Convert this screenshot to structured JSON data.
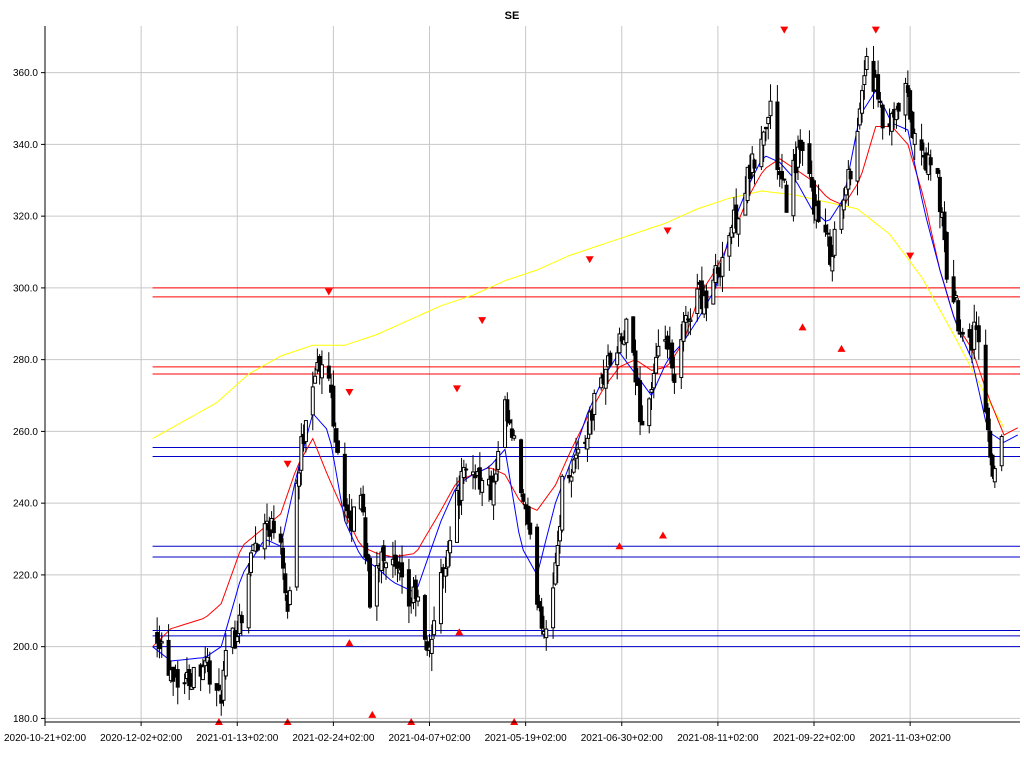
{
  "chart_data": {
    "type": "candlestick",
    "title": "SE",
    "xlabel": "",
    "ylabel": "",
    "ylim": [
      179,
      373
    ],
    "xlim": [
      "2020-10-21",
      "2021-12-21"
    ],
    "grid": true,
    "x_ticks": [
      "2020-10-21+02:00",
      "2020-12-02+02:00",
      "2021-01-13+02:00",
      "2021-02-24+02:00",
      "2021-04-07+02:00",
      "2021-05-19+02:00",
      "2021-06-30+02:00",
      "2021-08-11+02:00",
      "2021-09-22+02:00",
      "2021-11-03+02:00"
    ],
    "y_ticks": [
      "180.0",
      "200.0",
      "220.0",
      "240.0",
      "260.0",
      "280.0",
      "300.0",
      "320.0",
      "340.0",
      "360.0"
    ],
    "colors": {
      "candles": "#000000",
      "resistance_lines": "#ff0000",
      "support_lines": "#0000c8",
      "ma_red": "#ff0000",
      "ma_blue": "#0000ff",
      "ma_yellow": "#ffff00",
      "markers": "#ff0000"
    },
    "close_anchors": [
      [
        "2020-12-09",
        205
      ],
      [
        "2020-12-14",
        195
      ],
      [
        "2020-12-21",
        190
      ],
      [
        "2020-12-30",
        197
      ],
      [
        "2021-01-05",
        184
      ],
      [
        "2021-01-08",
        195
      ],
      [
        "2021-01-15",
        210
      ],
      [
        "2021-01-20",
        228
      ],
      [
        "2021-01-26",
        235
      ],
      [
        "2021-02-01",
        232
      ],
      [
        "2021-02-04",
        210
      ],
      [
        "2021-02-08",
        245
      ],
      [
        "2021-02-12",
        265
      ],
      [
        "2021-02-16",
        278
      ],
      [
        "2021-02-22",
        275
      ],
      [
        "2021-02-26",
        255
      ],
      [
        "2021-03-03",
        232
      ],
      [
        "2021-03-08",
        245
      ],
      [
        "2021-03-12",
        212
      ],
      [
        "2021-03-17",
        228
      ],
      [
        "2021-03-22",
        222
      ],
      [
        "2021-03-29",
        212
      ],
      [
        "2021-04-01",
        215
      ],
      [
        "2021-04-06",
        197
      ],
      [
        "2021-04-12",
        218
      ],
      [
        "2021-04-16",
        232
      ],
      [
        "2021-04-21",
        246
      ],
      [
        "2021-04-27",
        250
      ],
      [
        "2021-04-30",
        245
      ],
      [
        "2021-05-05",
        243
      ],
      [
        "2021-05-10",
        265
      ],
      [
        "2021-05-14",
        255
      ],
      [
        "2021-05-18",
        240
      ],
      [
        "2021-05-24",
        215
      ],
      [
        "2021-05-27",
        205
      ],
      [
        "2021-06-01",
        220
      ],
      [
        "2021-06-04",
        245
      ],
      [
        "2021-06-09",
        252
      ],
      [
        "2021-06-14",
        258
      ],
      [
        "2021-06-18",
        268
      ],
      [
        "2021-06-23",
        278
      ],
      [
        "2021-06-28",
        282
      ],
      [
        "2021-07-02",
        288
      ],
      [
        "2021-07-06",
        275
      ],
      [
        "2021-07-09",
        262
      ],
      [
        "2021-07-14",
        275
      ],
      [
        "2021-07-19",
        287
      ],
      [
        "2021-07-23",
        272
      ],
      [
        "2021-07-27",
        288
      ],
      [
        "2021-08-02",
        300
      ],
      [
        "2021-08-06",
        296
      ],
      [
        "2021-08-11",
        305
      ],
      [
        "2021-08-16",
        315
      ],
      [
        "2021-08-20",
        322
      ],
      [
        "2021-08-25",
        332
      ],
      [
        "2021-08-30",
        340
      ],
      [
        "2021-09-03",
        350
      ],
      [
        "2021-09-07",
        330
      ],
      [
        "2021-09-10",
        325
      ],
      [
        "2021-09-15",
        338
      ],
      [
        "2021-09-20",
        330
      ],
      [
        "2021-09-24",
        318
      ],
      [
        "2021-09-29",
        310
      ],
      [
        "2021-10-04",
        322
      ],
      [
        "2021-10-07",
        330
      ],
      [
        "2021-10-12",
        350
      ],
      [
        "2021-10-15",
        365
      ],
      [
        "2021-10-19",
        355
      ],
      [
        "2021-10-22",
        345
      ],
      [
        "2021-10-27",
        345
      ],
      [
        "2021-11-01",
        355
      ],
      [
        "2021-11-05",
        340
      ],
      [
        "2021-11-10",
        335
      ],
      [
        "2021-11-15",
        330
      ],
      [
        "2021-11-19",
        305
      ],
      [
        "2021-11-24",
        292
      ],
      [
        "2021-11-29",
        285
      ],
      [
        "2021-12-02",
        290
      ],
      [
        "2021-12-06",
        265
      ],
      [
        "2021-12-09",
        250
      ],
      [
        "2021-12-13",
        258
      ]
    ],
    "ma_red": [
      [
        "2020-12-07",
        200
      ],
      [
        "2020-12-15",
        205
      ],
      [
        "2020-12-30",
        208
      ],
      [
        "2021-01-06",
        212
      ],
      [
        "2021-01-15",
        228
      ],
      [
        "2021-02-01",
        237
      ],
      [
        "2021-02-08",
        250
      ],
      [
        "2021-02-15",
        258
      ],
      [
        "2021-02-22",
        247
      ],
      [
        "2021-03-01",
        237
      ],
      [
        "2021-03-08",
        228
      ],
      [
        "2021-03-15",
        226
      ],
      [
        "2021-03-22",
        225
      ],
      [
        "2021-04-01",
        226
      ],
      [
        "2021-04-12",
        238
      ],
      [
        "2021-04-19",
        246
      ],
      [
        "2021-04-26",
        248
      ],
      [
        "2021-05-03",
        250
      ],
      [
        "2021-05-10",
        248
      ],
      [
        "2021-05-17",
        240
      ],
      [
        "2021-05-24",
        238
      ],
      [
        "2021-06-01",
        245
      ],
      [
        "2021-06-08",
        255
      ],
      [
        "2021-06-15",
        264
      ],
      [
        "2021-06-22",
        272
      ],
      [
        "2021-06-29",
        278
      ],
      [
        "2021-07-06",
        280
      ],
      [
        "2021-07-13",
        277
      ],
      [
        "2021-07-20",
        278
      ],
      [
        "2021-07-27",
        285
      ],
      [
        "2021-08-03",
        298
      ],
      [
        "2021-08-10",
        305
      ],
      [
        "2021-08-17",
        314
      ],
      [
        "2021-08-24",
        325
      ],
      [
        "2021-08-31",
        333
      ],
      [
        "2021-09-07",
        336
      ],
      [
        "2021-09-14",
        333
      ],
      [
        "2021-09-21",
        330
      ],
      [
        "2021-09-28",
        325
      ],
      [
        "2021-10-05",
        323
      ],
      [
        "2021-10-12",
        330
      ],
      [
        "2021-10-19",
        345
      ],
      [
        "2021-10-26",
        345
      ],
      [
        "2021-11-02",
        340
      ],
      [
        "2021-11-09",
        325
      ],
      [
        "2021-11-16",
        305
      ],
      [
        "2021-11-23",
        290
      ],
      [
        "2021-11-30",
        283
      ],
      [
        "2021-12-07",
        270
      ],
      [
        "2021-12-14",
        259
      ],
      [
        "2021-12-20",
        261
      ]
    ],
    "ma_blue": [
      [
        "2020-12-07",
        200
      ],
      [
        "2020-12-15",
        196
      ],
      [
        "2020-12-30",
        197
      ],
      [
        "2021-01-06",
        200
      ],
      [
        "2021-01-15",
        220
      ],
      [
        "2021-01-25",
        230
      ],
      [
        "2021-02-01",
        228
      ],
      [
        "2021-02-08",
        248
      ],
      [
        "2021-02-15",
        265
      ],
      [
        "2021-02-22",
        260
      ],
      [
        "2021-03-01",
        235
      ],
      [
        "2021-03-08",
        225
      ],
      [
        "2021-03-15",
        222
      ],
      [
        "2021-03-22",
        218
      ],
      [
        "2021-04-01",
        215
      ],
      [
        "2021-04-12",
        235
      ],
      [
        "2021-04-19",
        245
      ],
      [
        "2021-04-26",
        248
      ],
      [
        "2021-05-03",
        250
      ],
      [
        "2021-05-10",
        255
      ],
      [
        "2021-05-17",
        228
      ],
      [
        "2021-05-24",
        220
      ],
      [
        "2021-06-01",
        240
      ],
      [
        "2021-06-08",
        252
      ],
      [
        "2021-06-15",
        265
      ],
      [
        "2021-06-22",
        275
      ],
      [
        "2021-06-29",
        282
      ],
      [
        "2021-07-06",
        276
      ],
      [
        "2021-07-13",
        270
      ],
      [
        "2021-07-20",
        280
      ],
      [
        "2021-07-27",
        285
      ],
      [
        "2021-08-03",
        292
      ],
      [
        "2021-08-10",
        300
      ],
      [
        "2021-08-17",
        317
      ],
      [
        "2021-08-24",
        328
      ],
      [
        "2021-08-31",
        337
      ],
      [
        "2021-09-07",
        335
      ],
      [
        "2021-09-14",
        330
      ],
      [
        "2021-09-21",
        322
      ],
      [
        "2021-09-28",
        318
      ],
      [
        "2021-10-05",
        325
      ],
      [
        "2021-10-12",
        348
      ],
      [
        "2021-10-19",
        355
      ],
      [
        "2021-10-26",
        346
      ],
      [
        "2021-11-02",
        344
      ],
      [
        "2021-11-09",
        322
      ],
      [
        "2021-11-16",
        305
      ],
      [
        "2021-11-23",
        290
      ],
      [
        "2021-11-30",
        280
      ],
      [
        "2021-12-07",
        260
      ],
      [
        "2021-12-14",
        257
      ],
      [
        "2021-12-20",
        259
      ]
    ],
    "ma_yellow": [
      [
        "2020-12-07",
        258
      ],
      [
        "2020-12-21",
        263
      ],
      [
        "2021-01-04",
        268
      ],
      [
        "2021-01-18",
        276
      ],
      [
        "2021-02-01",
        281
      ],
      [
        "2021-02-15",
        284
      ],
      [
        "2021-03-01",
        284
      ],
      [
        "2021-03-15",
        287
      ],
      [
        "2021-03-29",
        291
      ],
      [
        "2021-04-12",
        295
      ],
      [
        "2021-04-26",
        298
      ],
      [
        "2021-05-10",
        302
      ],
      [
        "2021-05-24",
        305
      ],
      [
        "2021-06-07",
        309
      ],
      [
        "2021-06-21",
        312
      ],
      [
        "2021-07-05",
        315
      ],
      [
        "2021-07-19",
        318
      ],
      [
        "2021-08-02",
        322
      ],
      [
        "2021-08-16",
        325
      ],
      [
        "2021-08-30",
        327
      ],
      [
        "2021-09-13",
        326
      ],
      [
        "2021-09-27",
        324
      ],
      [
        "2021-10-11",
        322
      ],
      [
        "2021-10-25",
        315
      ],
      [
        "2021-11-08",
        303
      ],
      [
        "2021-11-22",
        287
      ],
      [
        "2021-12-06",
        270
      ],
      [
        "2021-12-14",
        261
      ]
    ],
    "hlines_red": [
      300.0,
      297.5,
      278.0,
      276.0
    ],
    "hlines_blue": [
      255.5,
      253.0,
      228.0,
      225.0,
      204.5,
      203.0,
      200.0
    ],
    "markers_down": [
      [
        "2021-02-04",
        251
      ],
      [
        "2021-02-22",
        299
      ],
      [
        "2021-03-03",
        271
      ],
      [
        "2021-04-19",
        272
      ],
      [
        "2021-04-30",
        291
      ],
      [
        "2021-06-16",
        308
      ],
      [
        "2021-07-20",
        316
      ],
      [
        "2021-09-09",
        372
      ],
      [
        "2021-10-19",
        372
      ],
      [
        "2021-11-03",
        309
      ]
    ],
    "markers_up": [
      [
        "2021-01-05",
        179
      ],
      [
        "2021-02-04",
        179
      ],
      [
        "2021-03-03",
        201
      ],
      [
        "2021-03-13",
        181
      ],
      [
        "2021-03-30",
        179
      ],
      [
        "2021-04-20",
        204
      ],
      [
        "2021-05-14",
        179
      ],
      [
        "2021-06-29",
        228
      ],
      [
        "2021-07-18",
        231
      ],
      [
        "2021-09-17",
        289
      ],
      [
        "2021-10-04",
        283
      ]
    ]
  }
}
